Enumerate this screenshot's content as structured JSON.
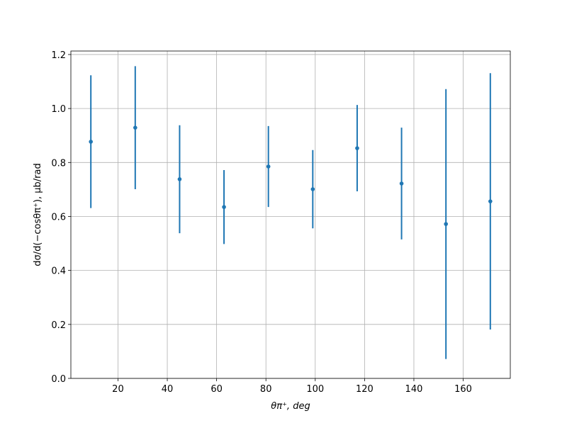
{
  "chart_data": {
    "type": "errorbar",
    "xlabel": "θπ⁺, deg",
    "ylabel": "dσ/d(−cosθπ⁺), μb/rad",
    "x": [
      9,
      27,
      45,
      63,
      81,
      99,
      117,
      135,
      153,
      171
    ],
    "series": [
      {
        "color": "#1f77b4",
        "values": [
          0.877,
          0.929,
          0.738,
          0.635,
          0.785,
          0.701,
          0.853,
          0.722,
          0.572,
          0.656
        ],
        "errors": [
          0.246,
          0.228,
          0.2,
          0.137,
          0.15,
          0.145,
          0.16,
          0.207,
          0.5,
          0.475
        ]
      }
    ],
    "xlim": [
      0.9,
      179.1
    ],
    "ylim": [
      0,
      1.213
    ],
    "xticks": [
      20,
      40,
      60,
      80,
      100,
      120,
      140,
      160
    ],
    "yticks": [
      {
        "value": 0,
        "label": "0.0"
      },
      {
        "value": 0.2,
        "label": "0.2"
      },
      {
        "value": 0.4,
        "label": "0.4"
      },
      {
        "value": 0.6,
        "label": "0.6"
      },
      {
        "value": 0.8,
        "label": "0.8"
      },
      {
        "value": 1.0,
        "label": "1.0"
      },
      {
        "value": 1.2,
        "label": "1.2"
      }
    ],
    "grid": true
  }
}
